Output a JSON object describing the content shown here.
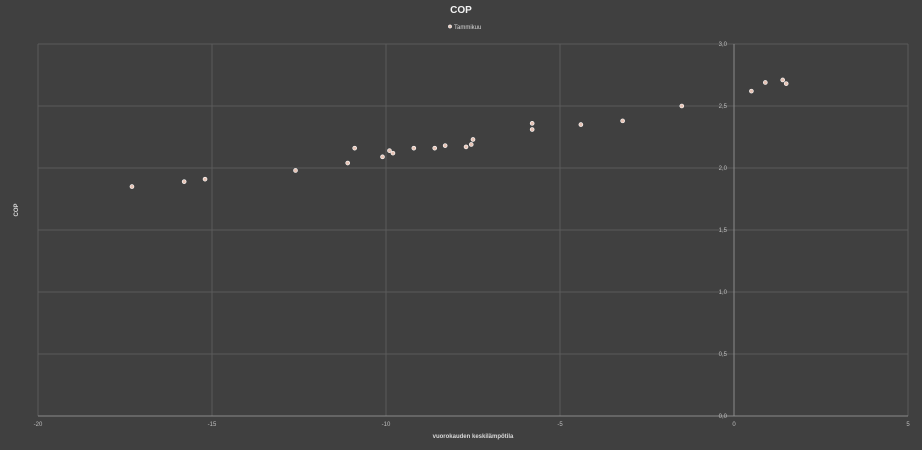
{
  "chart_data": {
    "type": "scatter",
    "title": "COP",
    "xlabel": "vuorokauden keskilämpötila",
    "ylabel": "COP",
    "xlim": [
      -20,
      5
    ],
    "ylim": [
      0,
      3
    ],
    "x_ticks": [
      "-20",
      "-15",
      "-10",
      "-5",
      "0",
      "5"
    ],
    "y_ticks": [
      "0,0",
      "0,5",
      "1,0",
      "1,5",
      "2,0",
      "2,5",
      "3,0"
    ],
    "grid": true,
    "legend": "top",
    "colors": {
      "background": "#404040",
      "point": "#e6c3b5"
    },
    "series": [
      {
        "name": "Tammikuu",
        "points": [
          [
            -17.3,
            1.85
          ],
          [
            -15.8,
            1.89
          ],
          [
            -15.2,
            1.91
          ],
          [
            -12.6,
            1.98
          ],
          [
            -11.1,
            2.04
          ],
          [
            -10.9,
            2.16
          ],
          [
            -10.1,
            2.09
          ],
          [
            -9.9,
            2.14
          ],
          [
            -9.8,
            2.12
          ],
          [
            -9.2,
            2.16
          ],
          [
            -8.6,
            2.16
          ],
          [
            -8.3,
            2.18
          ],
          [
            -7.7,
            2.17
          ],
          [
            -7.55,
            2.19
          ],
          [
            -7.5,
            2.23
          ],
          [
            -5.8,
            2.36
          ],
          [
            -5.8,
            2.31
          ],
          [
            -4.4,
            2.35
          ],
          [
            -3.2,
            2.38
          ],
          [
            -1.5,
            2.5
          ],
          [
            0.5,
            2.62
          ],
          [
            0.9,
            2.69
          ],
          [
            1.4,
            2.71
          ],
          [
            1.5,
            2.68
          ]
        ]
      }
    ]
  }
}
